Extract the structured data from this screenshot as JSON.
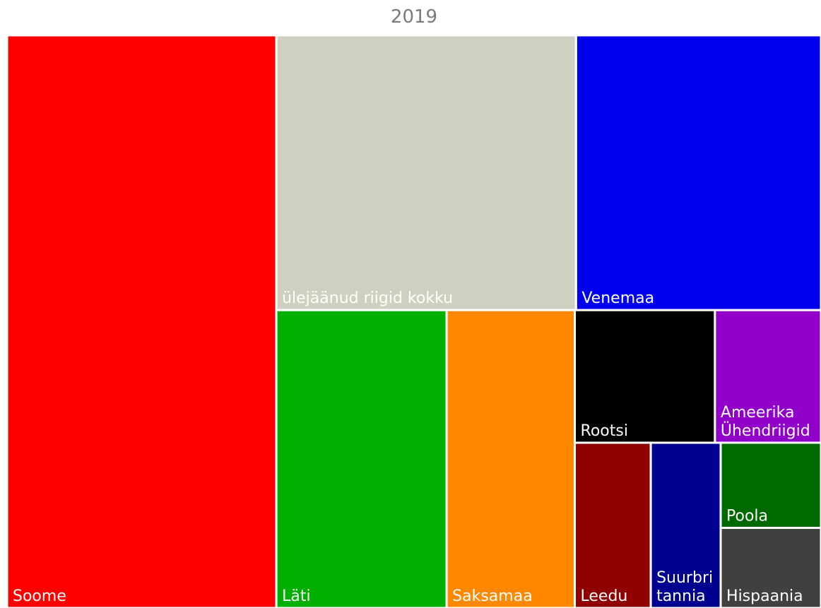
{
  "chart_data": {
    "type": "treemap",
    "title": "2019",
    "categories": [
      "Soome",
      "ülejäänud riigid kokku",
      "Venemaa",
      "Läti",
      "Saksamaa",
      "Rootsi",
      "Ameerika Ühendriigid",
      "Leedu",
      "Suurbritannia",
      "Poola",
      "Hispaania"
    ],
    "values": [
      307,
      164,
      134,
      101,
      76,
      37,
      28,
      25,
      23,
      17,
      16
    ],
    "colors": [
      "#ff0000",
      "#d0d0c0",
      "#0000ee",
      "#00b000",
      "#ff8800",
      "#000000",
      "#9000c8",
      "#900000",
      "#000090",
      "#006a00",
      "#404040"
    ]
  }
}
